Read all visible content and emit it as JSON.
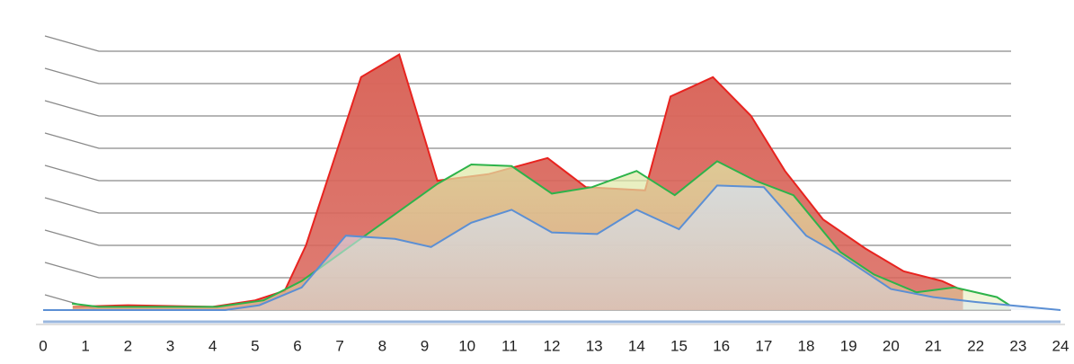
{
  "chart_data": {
    "type": "area",
    "xlim": [
      0,
      24
    ],
    "xticks": [
      0,
      1,
      2,
      3,
      4,
      5,
      6,
      7,
      8,
      9,
      10,
      11,
      12,
      13,
      14,
      15,
      16,
      17,
      18,
      19,
      20,
      21,
      22,
      23,
      24
    ],
    "ylim": [
      0,
      8
    ],
    "yticks": [
      0,
      1,
      2,
      3,
      4,
      5,
      6,
      7,
      8
    ],
    "grid": true,
    "series": [
      {
        "color": "#e8231f",
        "fill": "#d9665b",
        "x": [
          0.7,
          2,
          4,
          5,
          5.7,
          6.2,
          7.5,
          8.4,
          9.3,
          10.5,
          11.9,
          12.8,
          14.2,
          14.8,
          15.8,
          16.7,
          17.5,
          18.4,
          19.4,
          20.3,
          21.2,
          21.7
        ],
        "values": [
          0.1,
          0.15,
          0.1,
          0.3,
          0.6,
          2.0,
          7.2,
          7.9,
          4.0,
          4.2,
          4.7,
          3.8,
          3.7,
          6.6,
          7.2,
          6.0,
          4.3,
          2.8,
          1.9,
          1.2,
          0.9,
          0.6
        ]
      },
      {
        "color": "#2db34a",
        "fill": "#dfe8a6",
        "x": [
          0.68,
          1.3,
          4.1,
          5.2,
          6.1,
          9.3,
          10.1,
          11.05,
          12,
          12.95,
          14,
          14.9,
          15.9,
          16.8,
          17.7,
          18.8,
          19.6,
          20.6,
          21.5,
          22.5,
          22.8
        ],
        "values": [
          0.2,
          0.1,
          0.1,
          0.3,
          0.9,
          3.9,
          4.5,
          4.45,
          3.6,
          3.8,
          4.3,
          3.55,
          4.6,
          4.0,
          3.55,
          1.8,
          1.1,
          0.55,
          0.7,
          0.4,
          0.15
        ]
      },
      {
        "color": "#5b8fd4",
        "fill": "#d6e2f1",
        "x": [
          0,
          4.3,
          5.1,
          6.1,
          7.14,
          8.3,
          9.15,
          10.1,
          11.05,
          12,
          13.07,
          14,
          15,
          15.9,
          17,
          18,
          18.8,
          20,
          21,
          22,
          22.8,
          24
        ],
        "values": [
          0,
          0,
          0.15,
          0.7,
          2.3,
          2.2,
          1.95,
          2.7,
          3.1,
          2.4,
          2.35,
          3.1,
          2.5,
          3.85,
          3.8,
          2.3,
          1.7,
          0.65,
          0.4,
          0.25,
          0.15,
          0
        ]
      }
    ]
  }
}
